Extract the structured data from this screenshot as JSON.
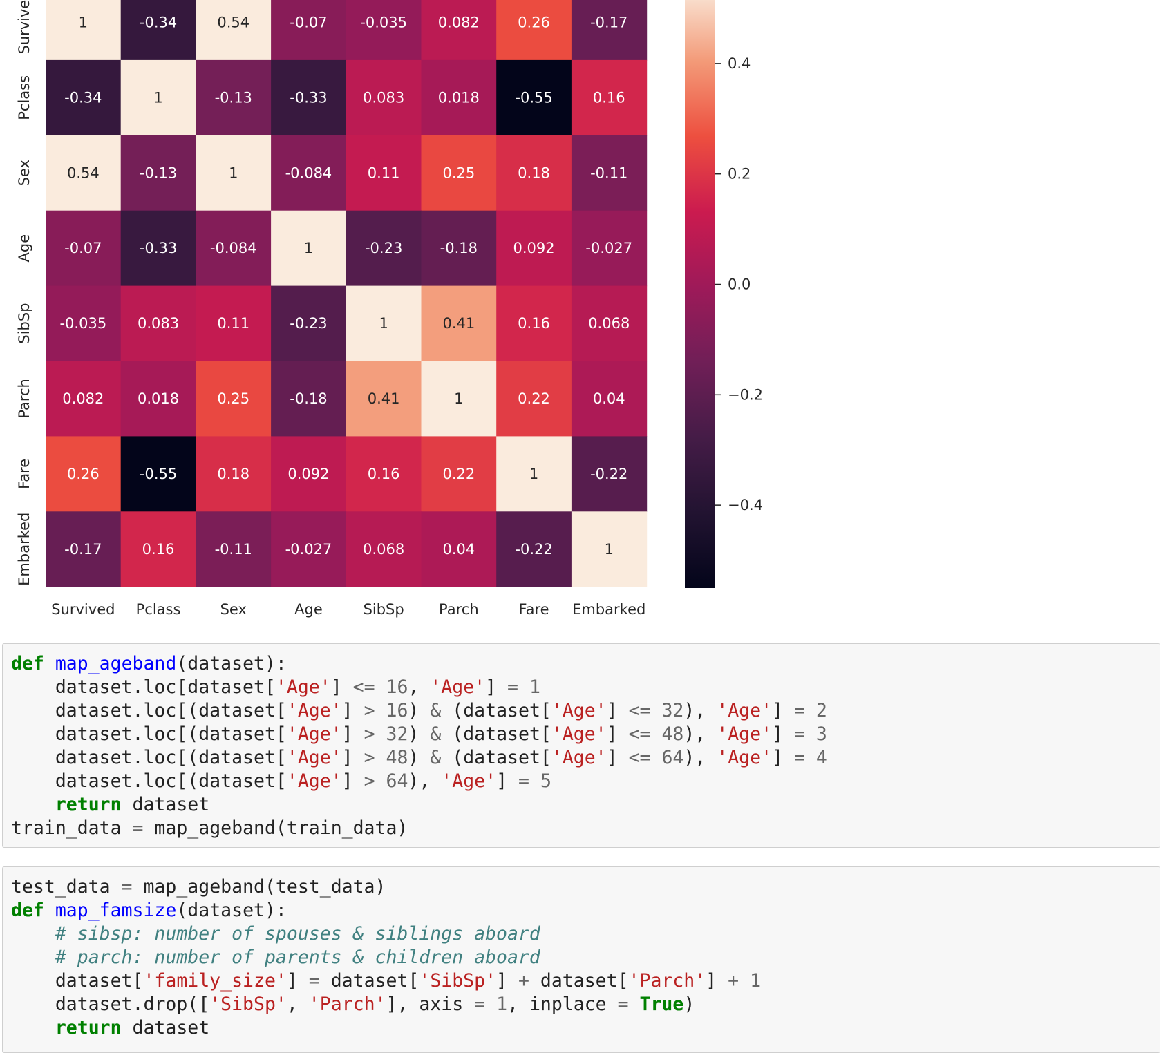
{
  "heatmap": {
    "chart_data": {
      "type": "heatmap",
      "rows": [
        "Survived",
        "Pclass",
        "Sex",
        "Age",
        "SibSp",
        "Parch",
        "Fare",
        "Embarked"
      ],
      "columns": [
        "Survived",
        "Pclass",
        "Sex",
        "Age",
        "SibSp",
        "Parch",
        "Fare",
        "Embarked"
      ],
      "values": [
        [
          1,
          -0.34,
          0.54,
          -0.07,
          -0.035,
          0.082,
          0.26,
          -0.17
        ],
        [
          -0.34,
          1,
          -0.13,
          -0.33,
          0.083,
          0.018,
          -0.55,
          0.16
        ],
        [
          0.54,
          -0.13,
          1,
          -0.084,
          0.11,
          0.25,
          0.18,
          -0.11
        ],
        [
          -0.07,
          -0.33,
          -0.084,
          1,
          -0.23,
          -0.18,
          0.092,
          -0.027
        ],
        [
          -0.035,
          0.083,
          0.11,
          -0.23,
          1,
          0.41,
          0.16,
          0.068
        ],
        [
          0.082,
          0.018,
          0.25,
          -0.18,
          0.41,
          1,
          0.22,
          0.04
        ],
        [
          0.26,
          -0.55,
          0.18,
          0.092,
          0.16,
          0.22,
          1,
          -0.22
        ],
        [
          -0.17,
          0.16,
          -0.11,
          -0.027,
          0.068,
          0.04,
          -0.22,
          1
        ]
      ],
      "cell_labels": [
        [
          "1",
          "-0.34",
          "0.54",
          "-0.07",
          "-0.035",
          "0.082",
          "0.26",
          "-0.17"
        ],
        [
          "-0.34",
          "1",
          "-0.13",
          "-0.33",
          "0.083",
          "0.018",
          "-0.55",
          "0.16"
        ],
        [
          "0.54",
          "-0.13",
          "1",
          "-0.084",
          "0.11",
          "0.25",
          "0.18",
          "-0.11"
        ],
        [
          "-0.07",
          "-0.33",
          "-0.084",
          "1",
          "-0.23",
          "-0.18",
          "0.092",
          "-0.027"
        ],
        [
          "-0.035",
          "0.083",
          "0.11",
          "-0.23",
          "1",
          "0.41",
          "0.16",
          "0.068"
        ],
        [
          "0.082",
          "0.018",
          "0.25",
          "-0.18",
          "0.41",
          "1",
          "0.22",
          "0.04"
        ],
        [
          "0.26",
          "-0.55",
          "0.18",
          "0.092",
          "0.16",
          "0.22",
          "1",
          "-0.22"
        ],
        [
          "-0.17",
          "0.16",
          "-0.11",
          "-0.027",
          "0.068",
          "0.04",
          "-0.22",
          "1"
        ]
      ],
      "colormap": "rocket",
      "color_range": [
        -0.55,
        0.54
      ],
      "colorbar_ticks": [
        0.4,
        0.2,
        0.0,
        -0.2,
        -0.4
      ],
      "colorbar_tick_labels": [
        "0.4",
        "0.2",
        "0.0",
        "−0.2",
        "−0.4"
      ],
      "legend": "right"
    }
  },
  "code_cells": [
    {
      "lines": [
        [
          [
            "kw",
            "def"
          ],
          [
            "plain",
            " "
          ],
          [
            "fn",
            "map_ageband"
          ],
          [
            "plain",
            "(dataset):"
          ]
        ],
        [
          [
            "plain",
            "    dataset.loc[dataset["
          ],
          [
            "str",
            "'Age'"
          ],
          [
            "plain",
            "] "
          ],
          [
            "op",
            "<="
          ],
          [
            "plain",
            " "
          ],
          [
            "num",
            "16"
          ],
          [
            "plain",
            ", "
          ],
          [
            "str",
            "'Age'"
          ],
          [
            "plain",
            "] "
          ],
          [
            "op",
            "="
          ],
          [
            "plain",
            " "
          ],
          [
            "num",
            "1"
          ]
        ],
        [
          [
            "plain",
            "    dataset.loc[(dataset["
          ],
          [
            "str",
            "'Age'"
          ],
          [
            "plain",
            "] "
          ],
          [
            "op",
            ">"
          ],
          [
            "plain",
            " "
          ],
          [
            "num",
            "16"
          ],
          [
            "plain",
            ") "
          ],
          [
            "op",
            "&"
          ],
          [
            "plain",
            " (dataset["
          ],
          [
            "str",
            "'Age'"
          ],
          [
            "plain",
            "] "
          ],
          [
            "op",
            "<="
          ],
          [
            "plain",
            " "
          ],
          [
            "num",
            "32"
          ],
          [
            "plain",
            "), "
          ],
          [
            "str",
            "'Age'"
          ],
          [
            "plain",
            "] "
          ],
          [
            "op",
            "="
          ],
          [
            "plain",
            " "
          ],
          [
            "num",
            "2"
          ]
        ],
        [
          [
            "plain",
            "    dataset.loc[(dataset["
          ],
          [
            "str",
            "'Age'"
          ],
          [
            "plain",
            "] "
          ],
          [
            "op",
            ">"
          ],
          [
            "plain",
            " "
          ],
          [
            "num",
            "32"
          ],
          [
            "plain",
            ") "
          ],
          [
            "op",
            "&"
          ],
          [
            "plain",
            " (dataset["
          ],
          [
            "str",
            "'Age'"
          ],
          [
            "plain",
            "] "
          ],
          [
            "op",
            "<="
          ],
          [
            "plain",
            " "
          ],
          [
            "num",
            "48"
          ],
          [
            "plain",
            "), "
          ],
          [
            "str",
            "'Age'"
          ],
          [
            "plain",
            "] "
          ],
          [
            "op",
            "="
          ],
          [
            "plain",
            " "
          ],
          [
            "num",
            "3"
          ]
        ],
        [
          [
            "plain",
            "    dataset.loc[(dataset["
          ],
          [
            "str",
            "'Age'"
          ],
          [
            "plain",
            "] "
          ],
          [
            "op",
            ">"
          ],
          [
            "plain",
            " "
          ],
          [
            "num",
            "48"
          ],
          [
            "plain",
            ") "
          ],
          [
            "op",
            "&"
          ],
          [
            "plain",
            " (dataset["
          ],
          [
            "str",
            "'Age'"
          ],
          [
            "plain",
            "] "
          ],
          [
            "op",
            "<="
          ],
          [
            "plain",
            " "
          ],
          [
            "num",
            "64"
          ],
          [
            "plain",
            "), "
          ],
          [
            "str",
            "'Age'"
          ],
          [
            "plain",
            "] "
          ],
          [
            "op",
            "="
          ],
          [
            "plain",
            " "
          ],
          [
            "num",
            "4"
          ]
        ],
        [
          [
            "plain",
            "    dataset.loc[(dataset["
          ],
          [
            "str",
            "'Age'"
          ],
          [
            "plain",
            "] "
          ],
          [
            "op",
            ">"
          ],
          [
            "plain",
            " "
          ],
          [
            "num",
            "64"
          ],
          [
            "plain",
            "), "
          ],
          [
            "str",
            "'Age'"
          ],
          [
            "plain",
            "] "
          ],
          [
            "op",
            "="
          ],
          [
            "plain",
            " "
          ],
          [
            "num",
            "5"
          ]
        ],
        [
          [
            "plain",
            "    "
          ],
          [
            "kw",
            "return"
          ],
          [
            "plain",
            " dataset"
          ]
        ],
        [
          [
            "plain",
            "train_data "
          ],
          [
            "op",
            "="
          ],
          [
            "plain",
            " map_ageband(train_data)"
          ]
        ]
      ]
    },
    {
      "lines": [
        [
          [
            "plain",
            "test_data "
          ],
          [
            "op",
            "="
          ],
          [
            "plain",
            " map_ageband(test_data)"
          ]
        ],
        [
          [
            "kw",
            "def"
          ],
          [
            "plain",
            " "
          ],
          [
            "fn",
            "map_famsize"
          ],
          [
            "plain",
            "(dataset):"
          ]
        ],
        [
          [
            "plain",
            "    "
          ],
          [
            "cm",
            "# sibsp: number of spouses & siblings aboard"
          ]
        ],
        [
          [
            "plain",
            "    "
          ],
          [
            "cm",
            "# parch: number of parents & children aboard"
          ]
        ],
        [
          [
            "plain",
            "    dataset["
          ],
          [
            "str",
            "'family_size'"
          ],
          [
            "plain",
            "] "
          ],
          [
            "op",
            "="
          ],
          [
            "plain",
            " dataset["
          ],
          [
            "str",
            "'SibSp'"
          ],
          [
            "plain",
            "] "
          ],
          [
            "op",
            "+"
          ],
          [
            "plain",
            " dataset["
          ],
          [
            "str",
            "'Parch'"
          ],
          [
            "plain",
            "] "
          ],
          [
            "op",
            "+"
          ],
          [
            "plain",
            " "
          ],
          [
            "num",
            "1"
          ]
        ],
        [
          [
            "plain",
            "    dataset.drop(["
          ],
          [
            "str",
            "'SibSp'"
          ],
          [
            "plain",
            ", "
          ],
          [
            "str",
            "'Parch'"
          ],
          [
            "plain",
            "], axis "
          ],
          [
            "op",
            "="
          ],
          [
            "plain",
            " "
          ],
          [
            "num",
            "1"
          ],
          [
            "plain",
            ", inplace "
          ],
          [
            "op",
            "="
          ],
          [
            "plain",
            " "
          ],
          [
            "kw",
            "True"
          ],
          [
            "plain",
            ")"
          ]
        ],
        [
          [
            "plain",
            "    "
          ],
          [
            "kw",
            "return"
          ],
          [
            "plain",
            " dataset"
          ]
        ]
      ]
    }
  ]
}
